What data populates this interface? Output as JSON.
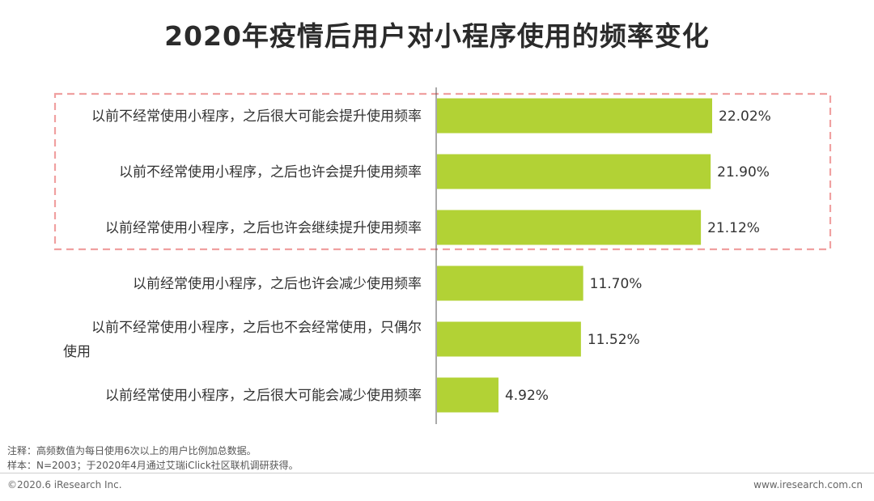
{
  "title": "2020年疫情后用户对小程序使用的频率变化",
  "chart_data": {
    "type": "bar",
    "orientation": "horizontal",
    "categories": [
      "以前不经常使用小程序，之后很大可能会提升使用频率",
      "以前不经常使用小程序，之后也许会提升使用频率",
      "以前经常使用小程序，之后也许会继续提升使用频率",
      "以前经常使用小程序，之后也许会减少使用频率",
      "以前不经常使用小程序，之后也不会经常使用，只偶尔使用",
      "以前经常使用小程序，之后很大可能会减少使用频率"
    ],
    "category_lines": [
      [
        "以前不经常使用小程序，之后很大可能会提升使用频率"
      ],
      [
        "以前不经常使用小程序，之后也许会提升使用频率"
      ],
      [
        "以前经常使用小程序，之后也许会继续提升使用频率"
      ],
      [
        "以前经常使用小程序，之后也许会减少使用频率"
      ],
      [
        "以前不经常使用小程序，之后也不会经常使用，只偶尔",
        "使用"
      ],
      [
        "以前经常使用小程序，之后很大可能会减少使用频率"
      ]
    ],
    "values": [
      22.02,
      21.9,
      21.12,
      11.7,
      11.52,
      4.92
    ],
    "value_labels": [
      "22.02%",
      "21.90%",
      "21.12%",
      "11.70%",
      "11.52%",
      "4.92%"
    ],
    "highlight": {
      "style": "dashed-box",
      "color": "#f0a0a0",
      "categories_index": [
        0,
        1,
        2
      ]
    },
    "bar_color": "#b2d235",
    "xlim": [
      0,
      25
    ],
    "grid": false,
    "legend": "none"
  },
  "notes": {
    "note": "注释：高频数值为每日使用6次以上的用户比例加总数据。",
    "sample": "样本：N=2003；于2020年4月通过艾瑞iClick社区联机调研获得。"
  },
  "footer": {
    "copyright": "©2020.6 iResearch Inc.",
    "website": "www.iresearch.com.cn"
  }
}
